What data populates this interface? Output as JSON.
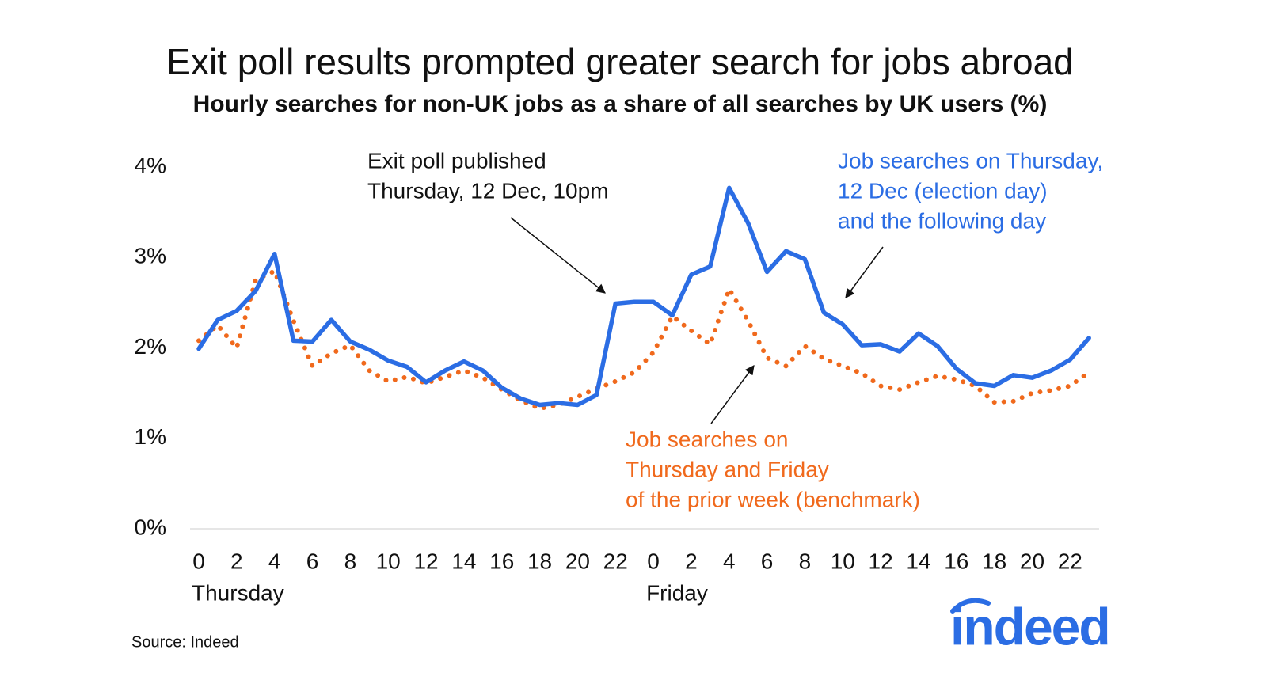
{
  "chart_data": {
    "type": "line",
    "title": "Exit poll results prompted greater search for jobs abroad",
    "subtitle": "Hourly searches for non-UK jobs as a share of all searches by UK users (%)",
    "categories": [
      "0",
      null,
      "2",
      null,
      "4",
      null,
      "6",
      null,
      "8",
      null,
      "10",
      null,
      "12",
      null,
      "14",
      null,
      "16",
      null,
      "18",
      null,
      "20",
      null,
      "22",
      null,
      "0",
      null,
      "2",
      null,
      "4",
      null,
      "6",
      null,
      "8",
      null,
      "10",
      null,
      "12",
      null,
      "14",
      null,
      "16",
      null,
      "18",
      null,
      "20",
      null,
      "22",
      null
    ],
    "day_labels": [
      "Thursday",
      "Friday"
    ],
    "series": [
      {
        "name": [
          "Job searches on Thursday,",
          "12 Dec (election day)",
          "and the following day"
        ],
        "color": "#2b6de4",
        "style": "solid",
        "values": [
          1.99,
          2.31,
          2.41,
          2.63,
          3.04,
          2.08,
          2.07,
          2.31,
          2.07,
          1.98,
          1.86,
          1.79,
          1.62,
          1.75,
          1.85,
          1.75,
          1.56,
          1.44,
          1.37,
          1.39,
          1.37,
          1.48,
          2.49,
          2.51,
          2.51,
          2.36,
          2.81,
          2.9,
          3.77,
          3.38,
          2.84,
          3.07,
          2.98,
          2.39,
          2.26,
          2.03,
          2.04,
          1.96,
          2.16,
          2.02,
          1.77,
          1.61,
          1.58,
          1.7,
          1.67,
          1.75,
          1.87,
          2.11
        ]
      },
      {
        "name": [
          "Job searches on",
          "Thursday and Friday",
          "of the prior week (benchmark)"
        ],
        "color": "#f0691c",
        "style": "dotted",
        "values": [
          2.08,
          2.25,
          2.0,
          2.75,
          2.85,
          2.3,
          1.8,
          1.94,
          2.03,
          1.75,
          1.63,
          1.68,
          1.61,
          1.68,
          1.75,
          1.67,
          1.54,
          1.42,
          1.33,
          1.37,
          1.46,
          1.55,
          1.63,
          1.73,
          1.95,
          2.35,
          2.19,
          2.04,
          2.65,
          2.3,
          1.89,
          1.8,
          2.02,
          1.88,
          1.8,
          1.72,
          1.58,
          1.54,
          1.62,
          1.69,
          1.65,
          1.58,
          1.4,
          1.41,
          1.5,
          1.53,
          1.58,
          1.73
        ]
      }
    ],
    "ylim": [
      0,
      4
    ],
    "yticks": [
      {
        "value": 0,
        "label": "0%"
      },
      {
        "value": 1,
        "label": "1%"
      },
      {
        "value": 2,
        "label": "2%"
      },
      {
        "value": 3,
        "label": "3%"
      },
      {
        "value": 4,
        "label": "4%"
      }
    ],
    "grid": false,
    "annotation": [
      "Exit poll published",
      "Thursday, 12 Dec, 10pm"
    ],
    "source": "Source: Indeed",
    "logo": "indeed"
  }
}
